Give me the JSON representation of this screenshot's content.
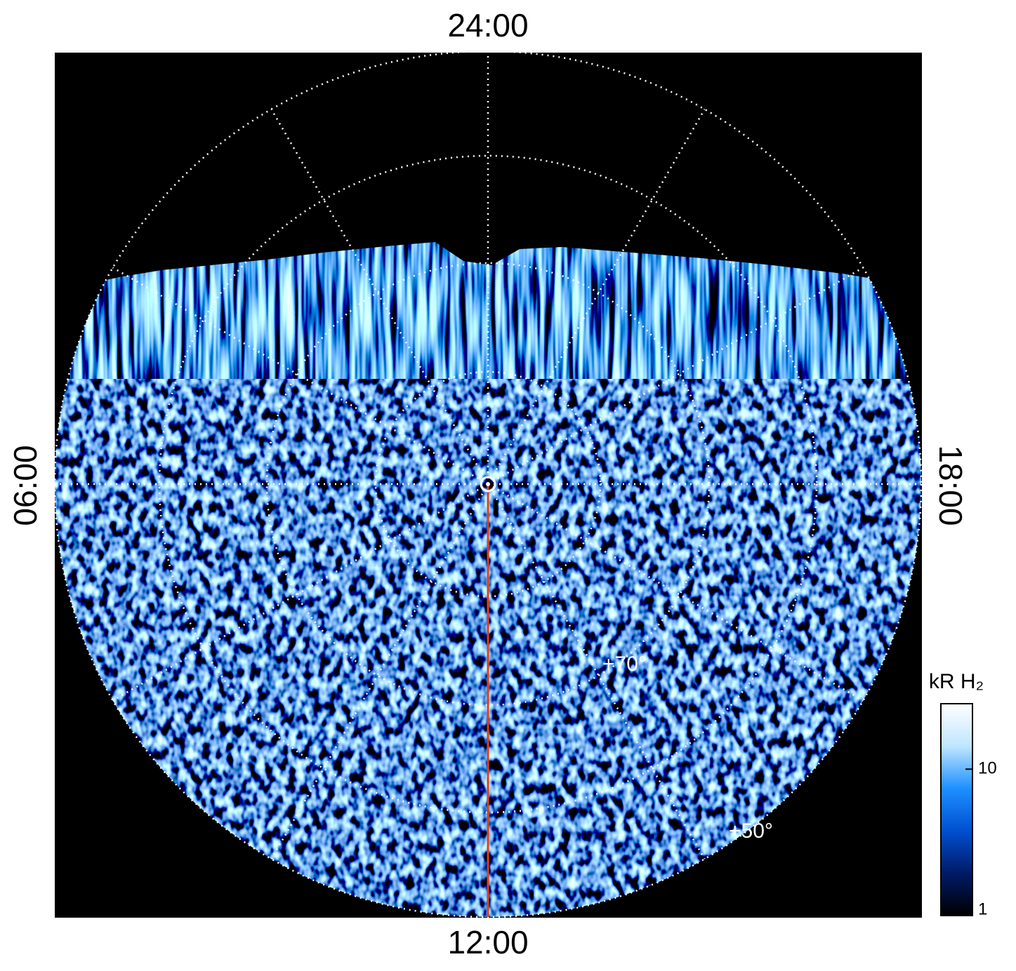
{
  "chart_data": {
    "type": "polar-image",
    "local_time_labels": {
      "top": "24:00",
      "bottom": "12:00",
      "left": "06:00",
      "right": "18:00"
    },
    "latitude_labels": [
      "+70°",
      "+50°"
    ],
    "colorbar": {
      "label": "kR H₂",
      "scale": "log",
      "lim": [
        1,
        28
      ],
      "ticks": [
        1,
        10
      ],
      "colors": [
        "#000000",
        "#001a66",
        "#0050d0",
        "#1e90ff",
        "#bfe6ff",
        "#ffffff"
      ]
    },
    "meridian_color": "#e0401a"
  }
}
